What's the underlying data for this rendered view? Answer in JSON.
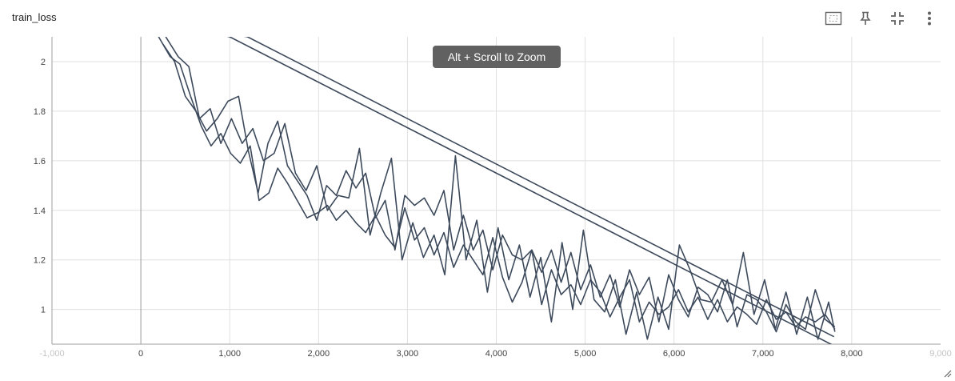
{
  "card": {
    "title": "train_loss",
    "tooltip": "Alt + Scroll to Zoom",
    "toolbar_icons": [
      "fit-domain-icon",
      "pin-icon",
      "collapse-icon",
      "more-vert-icon"
    ]
  },
  "colors": {
    "series": "#3d4a5c",
    "grid": "#e0e0e0",
    "axis": "#9e9e9e",
    "tooltip_bg": "#616161"
  },
  "chart_data": {
    "type": "line",
    "title": "train_loss",
    "xlabel": "",
    "ylabel": "",
    "xlim": [
      -1000,
      9000
    ],
    "ylim": [
      0.86,
      2.1
    ],
    "x_ticks": [
      "-1,000",
      "0",
      "1,000",
      "2,000",
      "3,000",
      "4,000",
      "5,000",
      "6,000",
      "7,000",
      "8,000",
      "9,000"
    ],
    "y_ticks": [
      "1",
      "1.2",
      "1.4",
      "1.6",
      "1.8",
      "2"
    ],
    "grid": true,
    "legend": "none",
    "series": [
      {
        "x": [
          200,
          330,
          440,
          560,
          680,
          790,
          900,
          1010,
          1120,
          1230,
          1330,
          1440,
          1540,
          1650,
          1760,
          1870,
          1990,
          2100,
          2200,
          2310,
          2420,
          2530,
          2640,
          2750,
          2860,
          2970,
          3080,
          3190,
          3300,
          3410,
          3520,
          3630,
          3740,
          3850,
          3960,
          4070,
          4180,
          4290,
          4400,
          4510,
          4620,
          4730,
          4840,
          4950,
          5060,
          5170,
          5280,
          5390,
          5500,
          5610,
          5720,
          5830,
          5940,
          6050,
          6160,
          6270,
          6380,
          6490,
          6600,
          6710,
          6820,
          6930,
          7040,
          7150,
          7260,
          7370,
          7480,
          7590,
          7700,
          7810
        ],
        "y": [
          2.1,
          2.02,
          1.99,
          1.86,
          1.74,
          1.66,
          1.71,
          1.63,
          1.59,
          1.66,
          1.44,
          1.47,
          1.57,
          1.51,
          1.44,
          1.37,
          1.39,
          1.42,
          1.36,
          1.4,
          1.35,
          1.31,
          1.38,
          1.3,
          1.25,
          1.41,
          1.28,
          1.33,
          1.22,
          1.31,
          1.17,
          1.26,
          1.2,
          1.14,
          1.29,
          1.13,
          1.03,
          1.11,
          1.24,
          1.02,
          1.16,
          1.06,
          1.1,
          1.02,
          1.12,
          1.07,
          0.97,
          1.05,
          1.12,
          0.95,
          1.03,
          0.98,
          1.01,
          1.08,
          0.99,
          1.05,
          0.96,
          1.04,
          0.95,
          1.01,
          0.98,
          0.94,
          1.04,
          0.96,
          0.99,
          0.93,
          0.97,
          0.95,
          0.98,
          0.92
        ]
      },
      {
        "x": [
          250,
          380,
          500,
          620,
          740,
          860,
          980,
          1100,
          1210,
          1320,
          1430,
          1540,
          1650,
          1760,
          1870,
          1980,
          2090,
          2200,
          2310,
          2420,
          2530,
          2640,
          2750,
          2860,
          2970,
          3080,
          3190,
          3300,
          3410,
          3520,
          3630,
          3740,
          3850,
          3960,
          4070,
          4180,
          4290,
          4400,
          4510,
          4620,
          4730,
          4840,
          4950,
          5060,
          5170,
          5280,
          5390,
          5500,
          5610,
          5720,
          5830,
          5940,
          6050,
          6160,
          6270,
          6380,
          6490,
          6600,
          6710,
          6820,
          6930,
          7040,
          7150,
          7260,
          7370,
          7480,
          7590,
          7700,
          7810
        ],
        "y": [
          2.07,
          2.0,
          1.86,
          1.8,
          1.72,
          1.77,
          1.84,
          1.86,
          1.64,
          1.47,
          1.67,
          1.76,
          1.58,
          1.52,
          1.46,
          1.36,
          1.5,
          1.46,
          1.56,
          1.49,
          1.55,
          1.37,
          1.44,
          1.24,
          1.46,
          1.42,
          1.45,
          1.38,
          1.48,
          1.24,
          1.38,
          1.24,
          1.32,
          1.16,
          1.3,
          1.22,
          1.2,
          1.24,
          1.15,
          1.24,
          1.11,
          1.23,
          1.08,
          1.18,
          1.05,
          1.14,
          1.01,
          1.16,
          1.06,
          1.13,
          0.95,
          1.14,
          1.04,
          0.97,
          1.09,
          1.06,
          0.99,
          1.12,
          0.93,
          1.06,
          1.04,
          0.99,
          0.91,
          1.02,
          0.95,
          0.92,
          1.08,
          0.96,
          0.93
        ]
      },
      {
        "x": [
          280,
          420,
          540,
          660,
          780,
          900,
          1020,
          1140,
          1260,
          1380,
          1500,
          1620,
          1740,
          1860,
          1980,
          2100,
          2220,
          2340,
          2460,
          2580,
          2700,
          2820,
          2940,
          3060,
          3180,
          3300,
          3420,
          3540,
          3660,
          3780,
          3900,
          4020,
          4140,
          4260,
          4380,
          4500,
          4620,
          4740,
          4860,
          4980,
          5100,
          5220,
          5340,
          5460,
          5580,
          5700,
          5820,
          5940,
          6060,
          6180,
          6300,
          6420,
          6540,
          6660,
          6780,
          6900,
          7020,
          7140,
          7260,
          7380,
          7500,
          7620,
          7740,
          7810
        ],
        "y": [
          2.1,
          2.02,
          1.98,
          1.77,
          1.81,
          1.67,
          1.77,
          1.67,
          1.73,
          1.6,
          1.63,
          1.75,
          1.55,
          1.48,
          1.58,
          1.4,
          1.46,
          1.45,
          1.65,
          1.3,
          1.47,
          1.61,
          1.2,
          1.35,
          1.21,
          1.3,
          1.14,
          1.62,
          1.2,
          1.36,
          1.07,
          1.33,
          1.12,
          1.26,
          1.05,
          1.21,
          0.95,
          1.27,
          1.0,
          1.32,
          1.04,
          0.99,
          1.12,
          0.9,
          1.07,
          0.88,
          1.05,
          0.92,
          1.26,
          1.16,
          1.04,
          1.03,
          1.12,
          1.02,
          1.23,
          0.98,
          1.12,
          0.92,
          1.07,
          0.9,
          1.05,
          0.88,
          1.03,
          0.91
        ]
      },
      {
        "x": [
          0,
          1200,
          7800
        ],
        "y": [
          2.18,
          2.1,
          0.89
        ]
      },
      {
        "x": [
          0,
          1000,
          7820
        ],
        "y": [
          2.18,
          2.1,
          0.85
        ]
      }
    ]
  }
}
